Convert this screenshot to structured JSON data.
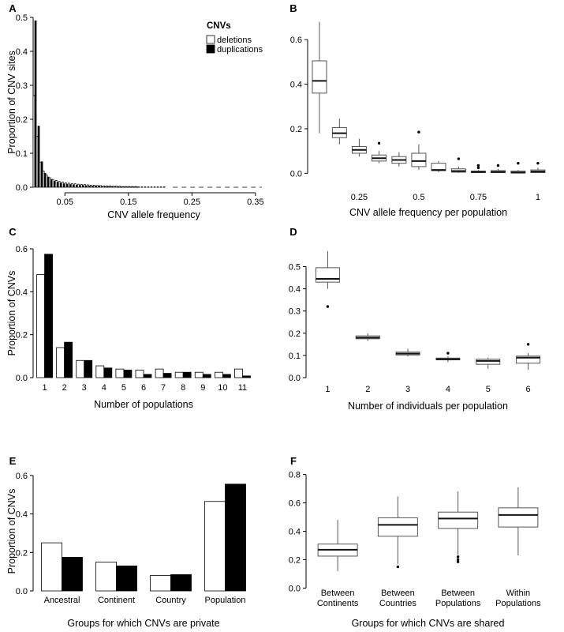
{
  "panels": [
    {
      "id": "A",
      "chart_data": {
        "type": "bar",
        "subtype": "histogram",
        "xlabel": "CNV allele frequency",
        "ylabel": "Proportion of CNV sites",
        "x_ticks": [
          "0.05",
          "0.15",
          "0.25",
          "0.35"
        ],
        "x_tick_values": [
          0.05,
          0.15,
          0.25,
          0.35
        ],
        "xlim": [
          0,
          0.38
        ],
        "ylim": [
          0,
          0.5
        ],
        "y_ticks": [
          "0.0",
          "0.1",
          "0.2",
          "0.3",
          "0.4",
          "0.5"
        ],
        "y_tick_values": [
          0,
          0.1,
          0.2,
          0.3,
          0.4,
          0.5
        ],
        "bin_width": 0.005,
        "legend": {
          "title": "CNVs",
          "entries": [
            "deletions",
            "duplications"
          ],
          "colors": [
            "#ffffff",
            "#000000"
          ],
          "position": "top-right"
        },
        "series": [
          {
            "name": "deletions",
            "color": "#ffffff",
            "values": [
              0.27,
              0.15,
              0.073,
              0.048,
              0.036,
              0.028,
              0.023,
              0.02,
              0.017,
              0.015,
              0.013,
              0.012,
              0.011,
              0.01,
              0.009,
              0.008,
              0.008,
              0.007,
              0.006,
              0.006,
              0.005,
              0.005,
              0.004,
              0.004,
              0.004,
              0.003,
              0.003,
              0.003,
              0.002,
              0.002,
              0.002,
              0.002,
              0.002,
              0.001,
              0.001,
              0.001,
              0.001,
              0.001,
              0.001,
              0.001,
              0.001,
              0.001,
              0,
              0,
              0,
              0,
              0,
              0,
              0,
              0,
              0,
              0,
              0,
              0,
              0,
              0,
              0,
              0,
              0,
              0,
              0,
              0,
              0,
              0,
              0,
              0,
              0,
              0,
              0,
              0,
              0,
              0,
              0,
              0,
              0,
              0
            ]
          },
          {
            "name": "duplications",
            "color": "#000000",
            "values": [
              0.49,
              0.18,
              0.075,
              0.041,
              0.03,
              0.023,
              0.018,
              0.015,
              0.012,
              0.01,
              0.009,
              0.008,
              0.007,
              0.006,
              0.005,
              0.005,
              0.004,
              0.004,
              0.003,
              0.003,
              0.003,
              0.002,
              0.002,
              0.002,
              0.002,
              0.002,
              0.001,
              0.001,
              0.001,
              0.001,
              0.001,
              0.001,
              0.001,
              0,
              0,
              0,
              0,
              0,
              0,
              0,
              0,
              0,
              0,
              0,
              0,
              0,
              0,
              0,
              0,
              0,
              0,
              0,
              0,
              0,
              0,
              0,
              0,
              0,
              0,
              0,
              0,
              0,
              0,
              0,
              0,
              0,
              0,
              0,
              0,
              0,
              0,
              0,
              0,
              0,
              0,
              0
            ]
          }
        ]
      }
    },
    {
      "id": "B",
      "chart_data": {
        "type": "boxplot",
        "xlabel": "CNV allele frequency per population",
        "ylabel": "",
        "x_ticks": [
          "0.25",
          "0.5",
          "0.75",
          "1"
        ],
        "x_tick_values": [
          0.25,
          0.5,
          0.75,
          1
        ],
        "xlim": [
          0.04,
          1.04
        ],
        "ylim": [
          -0.02,
          0.7
        ],
        "y_ticks": [
          "0.0",
          "0.2",
          "0.4",
          "0.6"
        ],
        "y_tick_values": [
          0,
          0.2,
          0.4,
          0.6
        ],
        "boxes": [
          {
            "x": 0.083,
            "whisker_low": 0.18,
            "q1": 0.36,
            "median": 0.415,
            "q3": 0.505,
            "whisker_high": 0.68,
            "outliers": []
          },
          {
            "x": 0.167,
            "whisker_low": 0.13,
            "q1": 0.16,
            "median": 0.18,
            "q3": 0.205,
            "whisker_high": 0.245,
            "outliers": []
          },
          {
            "x": 0.25,
            "whisker_low": 0.075,
            "q1": 0.09,
            "median": 0.105,
            "q3": 0.12,
            "whisker_high": 0.155,
            "outliers": []
          },
          {
            "x": 0.333,
            "whisker_low": 0.045,
            "q1": 0.055,
            "median": 0.068,
            "q3": 0.082,
            "whisker_high": 0.1,
            "outliers": [
              0.135
            ]
          },
          {
            "x": 0.417,
            "whisker_low": 0.03,
            "q1": 0.045,
            "median": 0.06,
            "q3": 0.075,
            "whisker_high": 0.095,
            "outliers": []
          },
          {
            "x": 0.5,
            "whisker_low": 0.015,
            "q1": 0.03,
            "median": 0.055,
            "q3": 0.09,
            "whisker_high": 0.13,
            "outliers": [
              0.185
            ]
          },
          {
            "x": 0.583,
            "whisker_low": 0.005,
            "q1": 0.012,
            "median": 0.015,
            "q3": 0.045,
            "whisker_high": 0.055,
            "outliers": []
          },
          {
            "x": 0.667,
            "whisker_low": 0.002,
            "q1": 0.005,
            "median": 0.01,
            "q3": 0.02,
            "whisker_high": 0.03,
            "outliers": [
              0.065
            ]
          },
          {
            "x": 0.75,
            "whisker_low": 0.001,
            "q1": 0.003,
            "median": 0.006,
            "q3": 0.01,
            "whisker_high": 0.015,
            "outliers": [
              0.025,
              0.035
            ]
          },
          {
            "x": 0.833,
            "whisker_low": 0.001,
            "q1": 0.003,
            "median": 0.006,
            "q3": 0.012,
            "whisker_high": 0.02,
            "outliers": [
              0.035
            ]
          },
          {
            "x": 0.917,
            "whisker_low": 0.0,
            "q1": 0.001,
            "median": 0.004,
            "q3": 0.01,
            "whisker_high": 0.015,
            "outliers": [
              0.045
            ]
          },
          {
            "x": 1.0,
            "whisker_low": 0.001,
            "q1": 0.003,
            "median": 0.008,
            "q3": 0.015,
            "whisker_high": 0.025,
            "outliers": [
              0.045
            ]
          }
        ]
      }
    },
    {
      "id": "C",
      "chart_data": {
        "type": "bar",
        "xlabel": "Number of populations",
        "ylabel": "Proportion of CNVs",
        "categories": [
          "1",
          "2",
          "3",
          "4",
          "5",
          "6",
          "7",
          "8",
          "9",
          "10",
          "11"
        ],
        "ylim": [
          0,
          0.6
        ],
        "y_ticks": [
          "0.0",
          "0.2",
          "0.4",
          "0.6"
        ],
        "y_tick_values": [
          0,
          0.2,
          0.4,
          0.6
        ],
        "series": [
          {
            "name": "deletions",
            "color": "#ffffff",
            "values": [
              0.48,
              0.14,
              0.08,
              0.055,
              0.04,
              0.035,
              0.04,
              0.025,
              0.025,
              0.025,
              0.04
            ]
          },
          {
            "name": "duplications",
            "color": "#000000",
            "values": [
              0.575,
              0.165,
              0.08,
              0.045,
              0.035,
              0.015,
              0.02,
              0.025,
              0.015,
              0.015,
              0.008
            ]
          }
        ]
      }
    },
    {
      "id": "D",
      "chart_data": {
        "type": "boxplot",
        "xlabel": "Number of individuals per population",
        "ylabel": "",
        "categories": [
          "1",
          "2",
          "3",
          "4",
          "5",
          "6"
        ],
        "ylim": [
          0,
          0.58
        ],
        "y_ticks": [
          "0.0",
          "0.1",
          "0.2",
          "0.3",
          "0.4",
          "0.5"
        ],
        "y_tick_values": [
          0,
          0.1,
          0.2,
          0.3,
          0.4,
          0.5
        ],
        "boxes": [
          {
            "whisker_low": 0.4,
            "q1": 0.43,
            "median": 0.445,
            "q3": 0.495,
            "whisker_high": 0.57,
            "outliers": [
              0.32
            ]
          },
          {
            "whisker_low": 0.165,
            "q1": 0.175,
            "median": 0.18,
            "q3": 0.188,
            "whisker_high": 0.2,
            "outliers": []
          },
          {
            "whisker_low": 0.095,
            "q1": 0.102,
            "median": 0.108,
            "q3": 0.115,
            "whisker_high": 0.13,
            "outliers": []
          },
          {
            "whisker_low": 0.07,
            "q1": 0.08,
            "median": 0.083,
            "q3": 0.088,
            "whisker_high": 0.095,
            "outliers": [
              0.11
            ]
          },
          {
            "whisker_low": 0.04,
            "q1": 0.06,
            "median": 0.075,
            "q3": 0.083,
            "whisker_high": 0.09,
            "outliers": []
          },
          {
            "whisker_low": 0.035,
            "q1": 0.065,
            "median": 0.09,
            "q3": 0.097,
            "whisker_high": 0.11,
            "outliers": [
              0.15
            ]
          }
        ]
      }
    },
    {
      "id": "E",
      "chart_data": {
        "type": "bar",
        "xlabel": "Groups for which CNVs are private",
        "ylabel": "Proportion of CNVs",
        "categories": [
          "Ancestral",
          "Continent",
          "Country",
          "Population"
        ],
        "ylim": [
          0,
          0.62
        ],
        "y_ticks": [
          "0.0",
          "0.2",
          "0.4",
          "0.6"
        ],
        "y_tick_values": [
          0,
          0.2,
          0.4,
          0.6
        ],
        "series": [
          {
            "name": "deletions",
            "color": "#ffffff",
            "values": [
              0.25,
              0.15,
              0.08,
              0.465
            ]
          },
          {
            "name": "duplications",
            "color": "#000000",
            "values": [
              0.175,
              0.13,
              0.085,
              0.555
            ]
          }
        ]
      }
    },
    {
      "id": "F",
      "chart_data": {
        "type": "boxplot",
        "xlabel": "Groups for which CNVs are shared",
        "ylabel": "",
        "categories": [
          [
            "Between",
            "Continents"
          ],
          [
            "Between",
            "Countries"
          ],
          [
            "Between",
            "Populations"
          ],
          [
            "Within",
            "Populations"
          ]
        ],
        "ylim": [
          -0.02,
          0.82
        ],
        "y_ticks": [
          "0.0",
          "0.2",
          "0.4",
          "0.6",
          "0.8"
        ],
        "y_tick_values": [
          0,
          0.2,
          0.4,
          0.6,
          0.8
        ],
        "boxes": [
          {
            "whisker_low": 0.12,
            "q1": 0.225,
            "median": 0.27,
            "q3": 0.31,
            "whisker_high": 0.48,
            "outliers": []
          },
          {
            "whisker_low": 0.17,
            "q1": 0.365,
            "median": 0.445,
            "q3": 0.495,
            "whisker_high": 0.645,
            "outliers": [
              0.15
            ]
          },
          {
            "whisker_low": 0.235,
            "q1": 0.42,
            "median": 0.49,
            "q3": 0.535,
            "whisker_high": 0.68,
            "outliers": [
              0.22,
              0.2,
              0.185
            ]
          },
          {
            "whisker_low": 0.23,
            "q1": 0.43,
            "median": 0.515,
            "q3": 0.565,
            "whisker_high": 0.71,
            "outliers": []
          }
        ]
      }
    }
  ]
}
